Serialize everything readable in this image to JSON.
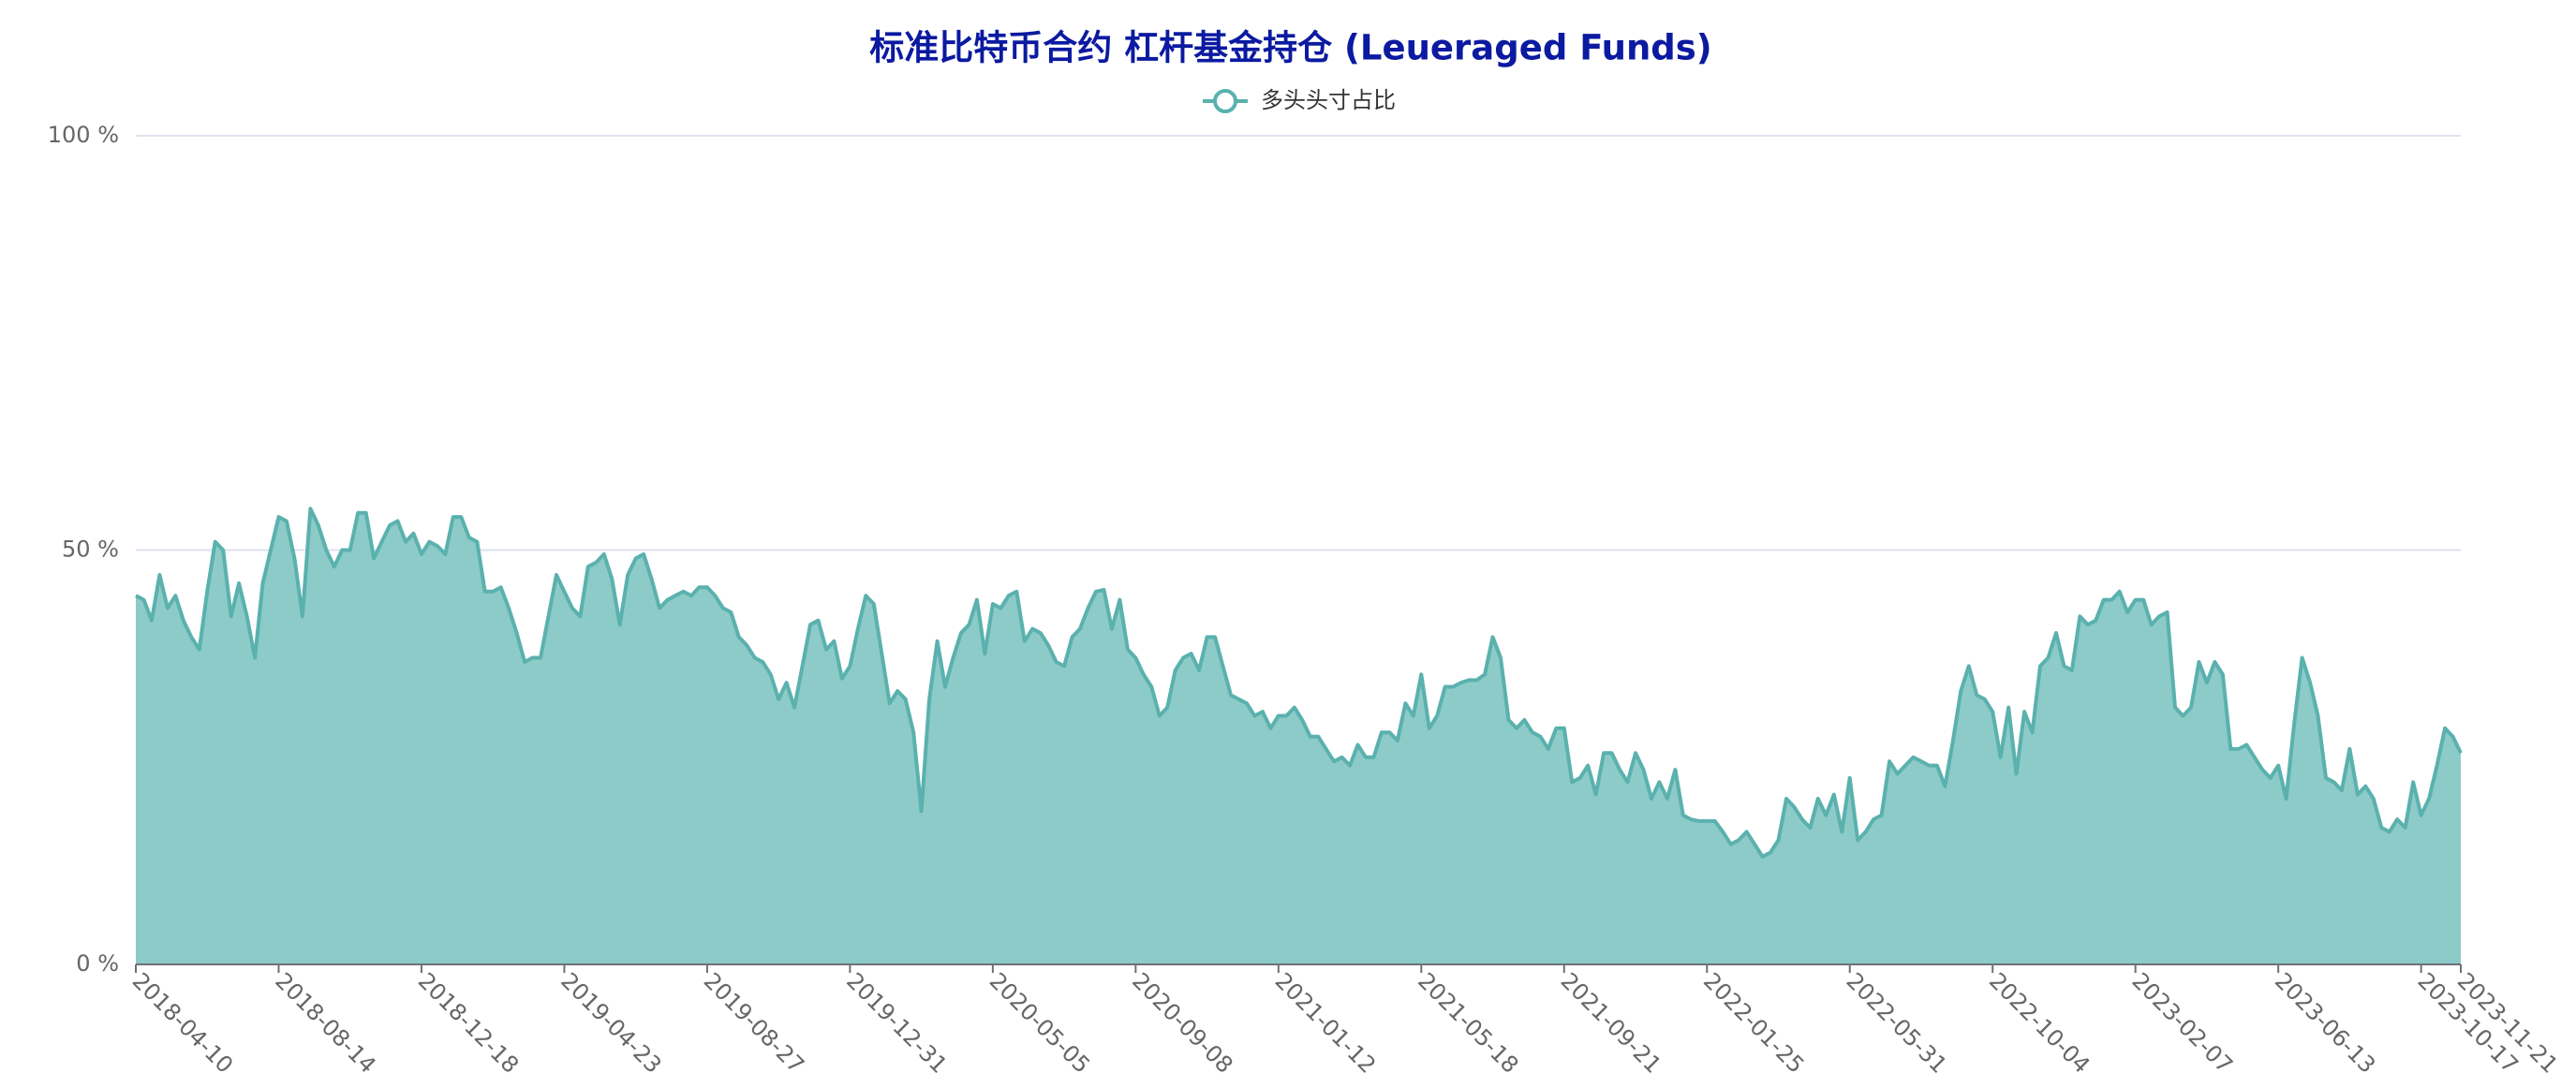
{
  "chart_data": {
    "type": "area",
    "title": "标准比特币合约 杠杆基金持仓 (Leueraged Funds)",
    "categories": [
      "2018-04-10",
      null,
      null,
      null,
      null,
      null,
      null,
      null,
      null,
      null,
      null,
      null,
      null,
      null,
      null,
      null,
      null,
      null,
      "2018-08-14",
      null,
      null,
      null,
      null,
      null,
      null,
      null,
      null,
      null,
      null,
      null,
      null,
      null,
      null,
      null,
      null,
      null,
      "2018-12-18",
      null,
      null,
      null,
      null,
      null,
      null,
      null,
      null,
      null,
      null,
      null,
      null,
      null,
      null,
      null,
      null,
      null,
      "2019-04-23",
      null,
      null,
      null,
      null,
      null,
      null,
      null,
      null,
      null,
      null,
      null,
      null,
      null,
      null,
      null,
      null,
      null,
      "2019-08-27",
      null,
      null,
      null,
      null,
      null,
      null,
      null,
      null,
      null,
      null,
      null,
      null,
      null,
      null,
      null,
      null,
      null,
      "2019-12-31",
      null,
      null,
      null,
      null,
      null,
      null,
      null,
      null,
      null,
      null,
      null,
      null,
      null,
      null,
      null,
      null,
      null,
      "2020-05-05",
      null,
      null,
      null,
      null,
      null,
      null,
      null,
      null,
      null,
      null,
      null,
      null,
      null,
      null,
      null,
      null,
      null,
      "2020-09-08",
      null,
      null,
      null,
      null,
      null,
      null,
      null,
      null,
      null,
      null,
      null,
      null,
      null,
      null,
      null,
      null,
      null,
      "2021-01-12",
      null,
      null,
      null,
      null,
      null,
      null,
      null,
      null,
      null,
      null,
      null,
      null,
      null,
      null,
      null,
      null,
      null,
      "2021-05-18",
      null,
      null,
      null,
      null,
      null,
      null,
      null,
      null,
      null,
      null,
      null,
      null,
      null,
      null,
      null,
      null,
      null,
      "2021-09-21",
      null,
      null,
      null,
      null,
      null,
      null,
      null,
      null,
      null,
      null,
      null,
      null,
      null,
      null,
      null,
      null,
      null,
      "2022-01-25",
      null,
      null,
      null,
      null,
      null,
      null,
      null,
      null,
      null,
      null,
      null,
      null,
      null,
      null,
      null,
      null,
      null,
      "2022-05-31",
      null,
      null,
      null,
      null,
      null,
      null,
      null,
      null,
      null,
      null,
      null,
      null,
      null,
      null,
      null,
      null,
      null,
      "2022-10-04",
      null,
      null,
      null,
      null,
      null,
      null,
      null,
      null,
      null,
      null,
      null,
      null,
      null,
      null,
      null,
      null,
      null,
      "2023-02-07",
      null,
      null,
      null,
      null,
      null,
      null,
      null,
      null,
      null,
      null,
      null,
      null,
      null,
      null,
      null,
      null,
      null,
      "2023-06-13",
      null,
      null,
      null,
      null,
      null,
      null,
      null,
      null,
      null,
      null,
      null,
      null,
      null,
      null,
      null,
      null,
      null,
      "2023-10-17",
      null,
      null,
      null,
      null,
      "2023-11-21"
    ],
    "series": [
      {
        "name": "多头头寸占比",
        "color": "#5ab1ae",
        "fill": "#8dcbc8",
        "values": [
          44.5,
          44,
          41.5,
          47,
          43,
          44.5,
          41.5,
          39.5,
          38,
          45,
          51,
          50,
          42,
          46,
          42,
          37,
          46,
          50,
          54,
          53.5,
          49,
          42,
          55,
          53,
          50,
          48,
          50,
          50,
          54.5,
          54.5,
          49,
          51,
          53,
          53.5,
          51,
          52,
          49.5,
          51,
          50.5,
          49.5,
          54,
          54,
          51.5,
          51,
          45,
          45,
          45.5,
          43,
          40,
          36.5,
          37,
          37,
          42,
          47,
          45,
          43,
          42,
          48,
          48.5,
          49.5,
          46.5,
          41,
          47,
          49,
          49.5,
          46.5,
          43,
          44,
          44.5,
          45,
          44.5,
          45.5,
          45.5,
          44.5,
          43,
          42.5,
          39.5,
          38.5,
          37,
          36.5,
          35,
          32,
          34,
          31,
          36,
          41,
          41.5,
          38,
          39,
          34.5,
          36,
          40.5,
          44.5,
          43.5,
          37.5,
          31.5,
          33,
          32,
          28,
          18.5,
          32,
          39,
          33.5,
          37,
          40,
          41,
          44,
          37.5,
          43.5,
          43,
          44.5,
          45,
          39,
          40.5,
          40,
          38.5,
          36.5,
          36,
          39.5,
          40.5,
          43,
          45,
          45.2,
          40.5,
          44,
          38,
          37,
          35,
          33.5,
          30,
          31,
          35.5,
          37,
          37.5,
          35.5,
          39.5,
          39.5,
          36,
          32.5,
          32,
          31.5,
          30,
          30.5,
          28.5,
          30,
          30,
          31,
          29.5,
          27.5,
          27.5,
          26,
          24.5,
          25,
          24,
          26.5,
          25,
          25,
          28,
          28,
          27,
          31.5,
          30,
          35,
          28.5,
          30,
          33.5,
          33.5,
          34,
          34.3,
          34.3,
          35,
          39.5,
          37,
          29.5,
          28.5,
          29.5,
          28,
          27.5,
          26,
          28.5,
          28.5,
          22,
          22.5,
          24,
          20.5,
          25.5,
          25.5,
          23.5,
          22,
          25.5,
          23.5,
          20,
          22,
          20,
          23.5,
          18,
          17.5,
          17.3,
          17.3,
          17.3,
          16,
          14.5,
          15,
          16,
          14.5,
          13,
          13.5,
          15,
          20,
          19,
          17.5,
          16.5,
          20,
          18,
          20.5,
          16,
          22.5,
          15,
          16,
          17.5,
          18,
          24.5,
          23,
          24,
          25,
          24.5,
          24,
          24,
          21.5,
          27,
          33,
          36,
          32.5,
          32,
          30.5,
          25,
          31,
          23,
          30.5,
          28,
          36,
          37,
          40,
          36,
          35.5,
          42,
          41,
          41.5,
          44,
          44,
          45,
          42.5,
          44,
          44,
          41,
          42,
          42.5,
          31,
          30,
          31,
          36.5,
          34,
          36.5,
          35,
          26,
          26,
          26.5,
          25,
          23.5,
          22.5,
          24,
          20,
          29,
          37,
          34,
          30,
          22.5,
          22,
          21,
          26,
          20.5,
          21.5,
          20,
          16.5,
          16,
          17.5,
          16.5,
          22,
          18,
          20,
          24,
          28.5,
          27.5,
          25.5
        ]
      }
    ],
    "ylim": [
      0,
      100
    ],
    "yticks": [
      {
        "value": 0,
        "label": "0 %"
      },
      {
        "value": 50,
        "label": "50 %"
      },
      {
        "value": 100,
        "label": "100 %"
      }
    ],
    "grid": true
  }
}
